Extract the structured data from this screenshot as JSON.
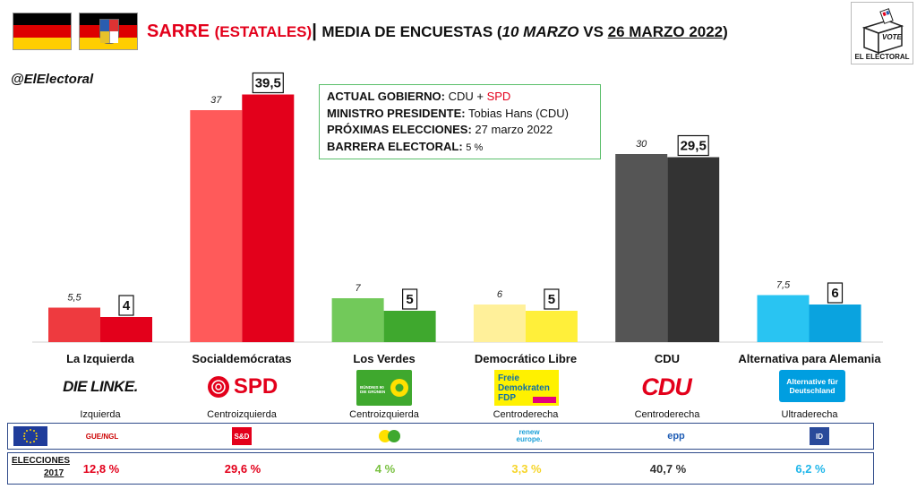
{
  "header": {
    "title_region": "SARRE",
    "title_scope": "(ESTATALES)",
    "title_sep": "|",
    "title_main": "MEDIA DE ENCUESTAS (",
    "title_date1": "10 MARZO",
    "title_vs": " VS ",
    "title_date2": "26 MARZO 2022",
    "title_close": ")",
    "handle": "@ElElectoral",
    "logo_vote": "VOTE",
    "logo_name": "EL ELECTORAL"
  },
  "infobox": {
    "gov_label": "ACTUAL GOBIERNO:",
    "gov_a": "CDU",
    "gov_plus": " + ",
    "gov_b": "SPD",
    "pm_label": "MINISTRO PRESIDENTE:",
    "pm_value": "Tobias Hans (CDU)",
    "next_label": "PRÓXIMAS ELECCIONES:",
    "next_value": "27 marzo 2022",
    "threshold_label": "BARRERA ELECTORAL:",
    "threshold_value": "5 %"
  },
  "chart_data": {
    "type": "bar",
    "categories": [
      "La Izquierda",
      "Socialdemócratas",
      "Los Verdes",
      "Democrático Libre",
      "CDU",
      "Alternativa para Alemania"
    ],
    "series": [
      {
        "values": [
          5.5,
          37,
          7,
          6,
          30,
          7.5
        ],
        "labels": [
          "5,5",
          "37",
          "7",
          "6",
          "30",
          "7,5"
        ]
      },
      {
        "values": [
          4,
          39.5,
          5,
          5,
          29.5,
          6
        ],
        "labels": [
          "4",
          "39,5",
          "5",
          "5",
          "29,5",
          "6"
        ]
      }
    ],
    "ylim": [
      0,
      40
    ],
    "colors_first": [
      "#ee3a3f",
      "#ff5a5a",
      "#72c95a",
      "#fff09a",
      "#555555",
      "#29c4f2"
    ],
    "colors_second": [
      "#e3001b",
      "#e3001b",
      "#3fa82e",
      "#ffef3a",
      "#333333",
      "#0aa3df"
    ]
  },
  "parties": [
    {
      "name": "La Izquierda",
      "logo_text": "DIE LINKE.",
      "ideology": "Izquierda",
      "eu_group": "GUE/NGL",
      "result_2017": "12,8 %",
      "result_color": "#e3001b"
    },
    {
      "name": "Socialdemócratas",
      "logo_text": "SPD",
      "ideology": "Centroizquierda",
      "eu_group": "S&D",
      "result_2017": "29,6 %",
      "result_color": "#e3001b"
    },
    {
      "name": "Los Verdes",
      "logo_text": "BÜNDNIS 90 DIE GRÜNEN",
      "ideology": "Centroizquierda",
      "eu_group": "Greens/EFA",
      "result_2017": "4 %",
      "result_color": "#7ac142"
    },
    {
      "name": "Democrático Libre",
      "logo_text": "Freie Demokraten FDP",
      "ideology": "Centroderecha",
      "eu_group": "renew europe.",
      "result_2017": "3,3 %",
      "result_color": "#f6d52a"
    },
    {
      "name": "CDU",
      "logo_text": "CDU",
      "ideology": "Centroderecha",
      "eu_group": "epp",
      "result_2017": "40,7 %",
      "result_color": "#333333"
    },
    {
      "name": "Alternativa para Alemania",
      "logo_text": "Alternative für Deutschland",
      "ideology": "Ultraderecha",
      "eu_group": "ID",
      "result_2017": "6,2 %",
      "result_color": "#1fb6ea"
    }
  ],
  "elections_label_1": "ELECCIONES",
  "elections_label_2": "2017"
}
